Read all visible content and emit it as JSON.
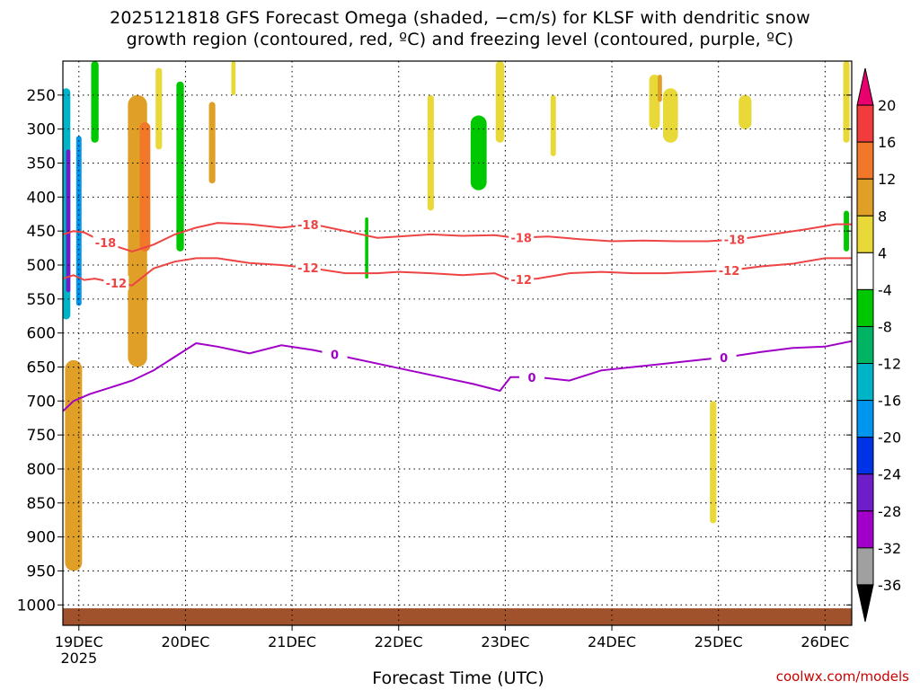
{
  "header": {
    "title_line1": "2025121818 GFS Forecast Omega (shaded, −cm/s) for KLSF with dendritic snow",
    "title_line2": "growth region (contoured, red, ºC) and freezing level (contoured, purple, ºC)"
  },
  "footer": {
    "x_axis_title": "Forecast Time (UTC)",
    "credit": "coolwx.com/models"
  },
  "chart_data": {
    "type": "heatmap",
    "title": "2025121818 GFS Forecast Omega (shaded, −cm/s) for KLSF with dendritic snow growth region (contoured, red, ºC) and freezing level (contoured, purple, ºC)",
    "xlabel": "Forecast Time (UTC)",
    "ylabel": "",
    "x_range_days": [
      18.85,
      26.25
    ],
    "y_range_hpa": [
      1030,
      200
    ],
    "grid": true,
    "x_ticks": [
      {
        "day": 19,
        "label": "19DEC",
        "sublabel": "2025"
      },
      {
        "day": 20,
        "label": "20DEC"
      },
      {
        "day": 21,
        "label": "21DEC"
      },
      {
        "day": 22,
        "label": "22DEC"
      },
      {
        "day": 23,
        "label": "23DEC"
      },
      {
        "day": 24,
        "label": "24DEC"
      },
      {
        "day": 25,
        "label": "25DEC"
      },
      {
        "day": 26,
        "label": "26DEC"
      }
    ],
    "y_ticks": [
      250,
      300,
      350,
      400,
      450,
      500,
      550,
      600,
      650,
      700,
      750,
      800,
      850,
      900,
      950,
      1000
    ],
    "colorbar": {
      "labels": [
        "20",
        "16",
        "12",
        "8",
        "4",
        "-4",
        "-8",
        "-12",
        "-16",
        "-20",
        "-24",
        "-28",
        "-32",
        "-36"
      ],
      "colors": [
        "#e8006e",
        "#f03c3c",
        "#f07828",
        "#e0a028",
        "#e8d838",
        "#ffffff",
        "#00c800",
        "#00b464",
        "#00b4c8",
        "#0096f0",
        "#0032e6",
        "#6e1ec8",
        "#a000c8",
        "#a0a0a0",
        "#000000"
      ]
    },
    "contours": [
      {
        "name": "-18",
        "color": "#ee4444",
        "labels_day": [
          19.25,
          21.15,
          23.15,
          25.15
        ],
        "points": [
          [
            18.85,
            455
          ],
          [
            18.95,
            450
          ],
          [
            19.05,
            452
          ],
          [
            19.15,
            460
          ],
          [
            19.3,
            470
          ],
          [
            19.5,
            480
          ],
          [
            19.7,
            470
          ],
          [
            19.9,
            455
          ],
          [
            20.1,
            445
          ],
          [
            20.3,
            438
          ],
          [
            20.6,
            440
          ],
          [
            20.9,
            445
          ],
          [
            21.2,
            440
          ],
          [
            21.5,
            450
          ],
          [
            21.8,
            460
          ],
          [
            22.0,
            458
          ],
          [
            22.3,
            455
          ],
          [
            22.6,
            457
          ],
          [
            22.9,
            456
          ],
          [
            23.1,
            460
          ],
          [
            23.4,
            458
          ],
          [
            23.7,
            462
          ],
          [
            24.0,
            465
          ],
          [
            24.3,
            464
          ],
          [
            24.6,
            465
          ],
          [
            24.9,
            465
          ],
          [
            25.2,
            462
          ],
          [
            25.5,
            455
          ],
          [
            25.8,
            448
          ],
          [
            26.1,
            440
          ],
          [
            26.25,
            440
          ]
        ]
      },
      {
        "name": "-12",
        "color": "#ee4444",
        "labels_day": [
          19.35,
          21.15,
          23.15,
          25.1
        ],
        "points": [
          [
            18.85,
            520
          ],
          [
            18.95,
            515
          ],
          [
            19.05,
            522
          ],
          [
            19.15,
            520
          ],
          [
            19.3,
            525
          ],
          [
            19.5,
            530
          ],
          [
            19.7,
            505
          ],
          [
            19.9,
            495
          ],
          [
            20.1,
            490
          ],
          [
            20.3,
            490
          ],
          [
            20.6,
            497
          ],
          [
            20.9,
            500
          ],
          [
            21.2,
            505
          ],
          [
            21.5,
            512
          ],
          [
            21.8,
            512
          ],
          [
            22.0,
            510
          ],
          [
            22.3,
            512
          ],
          [
            22.6,
            515
          ],
          [
            22.9,
            512
          ],
          [
            23.05,
            522
          ],
          [
            23.3,
            520
          ],
          [
            23.6,
            512
          ],
          [
            23.9,
            510
          ],
          [
            24.2,
            512
          ],
          [
            24.5,
            512
          ],
          [
            24.8,
            510
          ],
          [
            25.1,
            508
          ],
          [
            25.4,
            502
          ],
          [
            25.7,
            498
          ],
          [
            26.0,
            490
          ],
          [
            26.25,
            490
          ]
        ]
      },
      {
        "name": "0",
        "color": "#a000c8",
        "labels_day": [
          21.4,
          23.25,
          25.05
        ],
        "points": [
          [
            18.85,
            715
          ],
          [
            18.95,
            700
          ],
          [
            19.1,
            690
          ],
          [
            19.3,
            680
          ],
          [
            19.5,
            670
          ],
          [
            19.7,
            655
          ],
          [
            19.9,
            635
          ],
          [
            20.1,
            615
          ],
          [
            20.3,
            620
          ],
          [
            20.6,
            630
          ],
          [
            20.9,
            618
          ],
          [
            21.2,
            625
          ],
          [
            21.5,
            635
          ],
          [
            21.8,
            645
          ],
          [
            22.1,
            655
          ],
          [
            22.4,
            665
          ],
          [
            22.7,
            675
          ],
          [
            22.95,
            685
          ],
          [
            23.05,
            665
          ],
          [
            23.3,
            665
          ],
          [
            23.6,
            670
          ],
          [
            23.9,
            655
          ],
          [
            24.2,
            650
          ],
          [
            24.5,
            645
          ],
          [
            24.8,
            640
          ],
          [
            25.1,
            635
          ],
          [
            25.4,
            628
          ],
          [
            25.7,
            622
          ],
          [
            26.0,
            620
          ],
          [
            26.25,
            612
          ]
        ]
      }
    ],
    "shaded_regions": [
      {
        "day": 18.88,
        "p0": 240,
        "p1": 580,
        "w": 0.08,
        "color": "#00b4c8"
      },
      {
        "day": 18.9,
        "p0": 330,
        "p1": 540,
        "w": 0.04,
        "color": "#6e1ec8"
      },
      {
        "day": 19.0,
        "p0": 310,
        "p1": 560,
        "w": 0.05,
        "color": "#0096f0"
      },
      {
        "day": 18.92,
        "p0": 680,
        "p1": 900,
        "w": 0.09,
        "color": "#f03c3c"
      },
      {
        "day": 18.95,
        "p0": 640,
        "p1": 950,
        "w": 0.16,
        "color": "#e0a028"
      },
      {
        "day": 19.15,
        "p0": 200,
        "p1": 320,
        "w": 0.07,
        "color": "#00c800"
      },
      {
        "day": 19.55,
        "p0": 250,
        "p1": 650,
        "w": 0.18,
        "color": "#e0a028"
      },
      {
        "day": 19.6,
        "p0": 300,
        "p1": 440,
        "w": 0.05,
        "color": "#e8006e"
      },
      {
        "day": 19.62,
        "p0": 290,
        "p1": 480,
        "w": 0.1,
        "color": "#f07828"
      },
      {
        "day": 19.75,
        "p0": 210,
        "p1": 330,
        "w": 0.06,
        "color": "#e8d838"
      },
      {
        "day": 19.95,
        "p0": 230,
        "p1": 480,
        "w": 0.07,
        "color": "#00c800"
      },
      {
        "day": 20.25,
        "p0": 260,
        "p1": 380,
        "w": 0.06,
        "color": "#e0a028"
      },
      {
        "day": 20.45,
        "p0": 200,
        "p1": 250,
        "w": 0.04,
        "color": "#e8d838"
      },
      {
        "day": 21.7,
        "p0": 430,
        "p1": 520,
        "w": 0.03,
        "color": "#00c800"
      },
      {
        "day": 22.3,
        "p0": 250,
        "p1": 420,
        "w": 0.06,
        "color": "#e8d838"
      },
      {
        "day": 22.75,
        "p0": 280,
        "p1": 390,
        "w": 0.15,
        "color": "#00c800"
      },
      {
        "day": 22.95,
        "p0": 200,
        "p1": 320,
        "w": 0.08,
        "color": "#e8d838"
      },
      {
        "day": 23.45,
        "p0": 250,
        "p1": 340,
        "w": 0.05,
        "color": "#e8d838"
      },
      {
        "day": 24.4,
        "p0": 220,
        "p1": 300,
        "w": 0.1,
        "color": "#e8d838"
      },
      {
        "day": 24.45,
        "p0": 220,
        "p1": 260,
        "w": 0.04,
        "color": "#e0a028"
      },
      {
        "day": 24.55,
        "p0": 240,
        "p1": 320,
        "w": 0.14,
        "color": "#e8d838"
      },
      {
        "day": 25.25,
        "p0": 250,
        "p1": 300,
        "w": 0.12,
        "color": "#e8d838"
      },
      {
        "day": 24.95,
        "p0": 700,
        "p1": 880,
        "w": 0.06,
        "color": "#e8d838"
      },
      {
        "day": 26.2,
        "p0": 200,
        "p1": 320,
        "w": 0.06,
        "color": "#e8d838"
      },
      {
        "day": 26.2,
        "p0": 420,
        "p1": 480,
        "w": 0.05,
        "color": "#00c800"
      }
    ],
    "surface": {
      "color": "#a0522d",
      "p_top": 1005
    }
  }
}
